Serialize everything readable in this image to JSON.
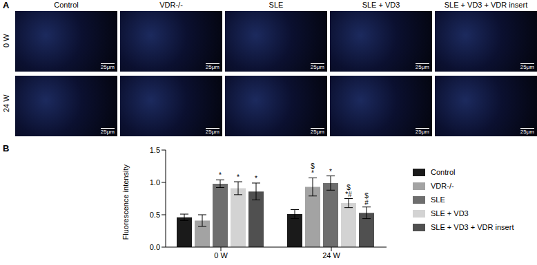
{
  "panel_a": {
    "letter": "A",
    "columns": [
      "Control",
      "VDR-/-",
      "SLE",
      "SLE + VD3",
      "SLE + VD3 + VDR insert"
    ],
    "rows": [
      "0 W",
      "24 W"
    ],
    "scale_bar": "25μm"
  },
  "chart_data": {
    "type": "bar",
    "letter": "B",
    "y_label": "Fluorescence intensity",
    "categories": [
      "0 W",
      "24 W"
    ],
    "ylim": [
      0,
      1.5
    ],
    "yticks": [
      {
        "value": 0,
        "label": "0.0"
      },
      {
        "value": 0.5,
        "label": "0.5"
      },
      {
        "value": 1,
        "label": "1.0"
      },
      {
        "value": 1.5,
        "label": "1.5"
      }
    ],
    "legend": "right",
    "series": [
      {
        "name": "Control",
        "color": "#1a1a1a",
        "values": [
          0.46,
          0.51
        ],
        "errors": [
          0.05,
          0.07
        ],
        "annotations": [
          [],
          []
        ]
      },
      {
        "name": "VDR-/-",
        "color": "#a3a3a3",
        "values": [
          0.41,
          0.93
        ],
        "errors": [
          0.09,
          0.14
        ],
        "annotations": [
          [],
          [
            "*",
            "$"
          ]
        ]
      },
      {
        "name": "SLE",
        "color": "#6e6e6e",
        "values": [
          0.98,
          0.99
        ],
        "errors": [
          0.06,
          0.11
        ],
        "annotations": [
          [
            "*"
          ],
          [
            "*"
          ]
        ]
      },
      {
        "name": "SLE + VD3",
        "color": "#d3d3d3",
        "values": [
          0.91,
          0.68
        ],
        "errors": [
          0.1,
          0.07
        ],
        "annotations": [
          [
            "*"
          ],
          [
            "*#",
            "$"
          ]
        ]
      },
      {
        "name": "SLE + VD3 + VDR insert",
        "color": "#505050",
        "values": [
          0.86,
          0.53
        ],
        "errors": [
          0.13,
          0.09
        ],
        "annotations": [
          [
            "*"
          ],
          [
            "#",
            "$"
          ]
        ]
      }
    ]
  }
}
